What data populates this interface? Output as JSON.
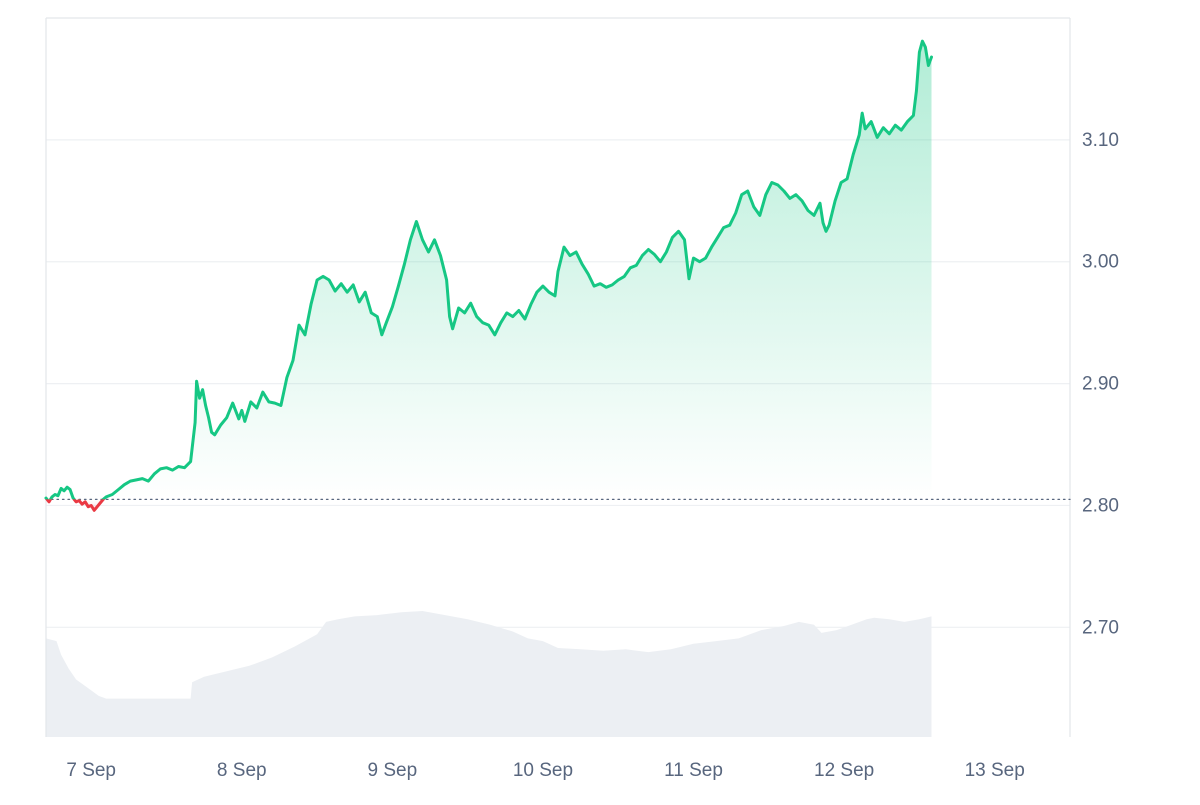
{
  "chart_data": {
    "type": "area",
    "title": "",
    "xlabel": "",
    "ylabel": "",
    "ylim": [
      2.61,
      3.2
    ],
    "xlim": [
      6.7,
      13.5
    ],
    "baseline": 2.805,
    "yticks": [
      2.7,
      2.8,
      2.9,
      3.0,
      3.1
    ],
    "ytick_labels": [
      "2.70",
      "2.80",
      "2.90",
      "3.00",
      "3.10"
    ],
    "xticks": [
      7,
      8,
      9,
      10,
      11,
      12,
      13
    ],
    "xtick_labels": [
      "7 Sep",
      "8 Sep",
      "9 Sep",
      "10 Sep",
      "11 Sep",
      "12 Sep",
      "13 Sep"
    ],
    "grid": true,
    "colors": {
      "up": "#16c784",
      "down": "#ea3943",
      "up_fill_top": "#16c784",
      "down_fill": "#ea3943",
      "volume": "#eceff3",
      "grid": "#eef0f3",
      "axis_text": "#58667e",
      "baseline": "#58667e"
    },
    "series": [
      {
        "values": [
          [
            6.7,
            2.806
          ],
          [
            6.72,
            2.803
          ],
          [
            6.74,
            2.807
          ],
          [
            6.76,
            2.809
          ],
          [
            6.78,
            2.808
          ],
          [
            6.8,
            2.814
          ],
          [
            6.82,
            2.812
          ],
          [
            6.84,
            2.815
          ],
          [
            6.86,
            2.813
          ],
          [
            6.88,
            2.806
          ],
          [
            6.9,
            2.803
          ],
          [
            6.92,
            2.804
          ],
          [
            6.94,
            2.801
          ],
          [
            6.96,
            2.803
          ],
          [
            6.98,
            2.799
          ],
          [
            7.0,
            2.8
          ],
          [
            7.02,
            2.796
          ],
          [
            7.04,
            2.799
          ],
          [
            7.06,
            2.802
          ],
          [
            7.08,
            2.805
          ],
          [
            7.1,
            2.807
          ],
          [
            7.14,
            2.809
          ],
          [
            7.18,
            2.813
          ],
          [
            7.22,
            2.817
          ],
          [
            7.26,
            2.82
          ],
          [
            7.3,
            2.821
          ],
          [
            7.34,
            2.822
          ],
          [
            7.38,
            2.82
          ],
          [
            7.42,
            2.826
          ],
          [
            7.46,
            2.83
          ],
          [
            7.5,
            2.831
          ],
          [
            7.54,
            2.829
          ],
          [
            7.58,
            2.832
          ],
          [
            7.62,
            2.831
          ],
          [
            7.66,
            2.836
          ],
          [
            7.69,
            2.868
          ],
          [
            7.7,
            2.902
          ],
          [
            7.72,
            2.888
          ],
          [
            7.74,
            2.895
          ],
          [
            7.76,
            2.882
          ],
          [
            7.78,
            2.872
          ],
          [
            7.8,
            2.86
          ],
          [
            7.82,
            2.858
          ],
          [
            7.86,
            2.866
          ],
          [
            7.9,
            2.872
          ],
          [
            7.94,
            2.884
          ],
          [
            7.98,
            2.871
          ],
          [
            8.0,
            2.878
          ],
          [
            8.02,
            2.869
          ],
          [
            8.06,
            2.885
          ],
          [
            8.1,
            2.88
          ],
          [
            8.14,
            2.893
          ],
          [
            8.18,
            2.885
          ],
          [
            8.22,
            2.884
          ],
          [
            8.26,
            2.882
          ],
          [
            8.3,
            2.905
          ],
          [
            8.34,
            2.919
          ],
          [
            8.38,
            2.948
          ],
          [
            8.42,
            2.94
          ],
          [
            8.46,
            2.965
          ],
          [
            8.5,
            2.985
          ],
          [
            8.54,
            2.988
          ],
          [
            8.58,
            2.985
          ],
          [
            8.62,
            2.976
          ],
          [
            8.66,
            2.982
          ],
          [
            8.7,
            2.975
          ],
          [
            8.74,
            2.981
          ],
          [
            8.78,
            2.967
          ],
          [
            8.82,
            2.975
          ],
          [
            8.86,
            2.958
          ],
          [
            8.9,
            2.955
          ],
          [
            8.93,
            2.94
          ],
          [
            8.96,
            2.95
          ],
          [
            9.0,
            2.963
          ],
          [
            9.04,
            2.98
          ],
          [
            9.08,
            2.998
          ],
          [
            9.12,
            3.018
          ],
          [
            9.16,
            3.033
          ],
          [
            9.2,
            3.018
          ],
          [
            9.24,
            3.008
          ],
          [
            9.28,
            3.018
          ],
          [
            9.32,
            3.005
          ],
          [
            9.36,
            2.985
          ],
          [
            9.38,
            2.955
          ],
          [
            9.4,
            2.945
          ],
          [
            9.44,
            2.962
          ],
          [
            9.48,
            2.958
          ],
          [
            9.52,
            2.966
          ],
          [
            9.56,
            2.955
          ],
          [
            9.6,
            2.95
          ],
          [
            9.64,
            2.948
          ],
          [
            9.68,
            2.94
          ],
          [
            9.72,
            2.95
          ],
          [
            9.76,
            2.958
          ],
          [
            9.8,
            2.955
          ],
          [
            9.84,
            2.96
          ],
          [
            9.88,
            2.953
          ],
          [
            9.92,
            2.965
          ],
          [
            9.96,
            2.975
          ],
          [
            10.0,
            2.98
          ],
          [
            10.04,
            2.975
          ],
          [
            10.08,
            2.972
          ],
          [
            10.1,
            2.992
          ],
          [
            10.14,
            3.012
          ],
          [
            10.18,
            3.005
          ],
          [
            10.22,
            3.008
          ],
          [
            10.26,
            2.998
          ],
          [
            10.3,
            2.99
          ],
          [
            10.34,
            2.98
          ],
          [
            10.38,
            2.982
          ],
          [
            10.42,
            2.979
          ],
          [
            10.46,
            2.981
          ],
          [
            10.5,
            2.985
          ],
          [
            10.54,
            2.988
          ],
          [
            10.58,
            2.995
          ],
          [
            10.62,
            2.997
          ],
          [
            10.66,
            3.005
          ],
          [
            10.7,
            3.01
          ],
          [
            10.74,
            3.006
          ],
          [
            10.78,
            3.0
          ],
          [
            10.82,
            3.008
          ],
          [
            10.86,
            3.02
          ],
          [
            10.9,
            3.025
          ],
          [
            10.94,
            3.018
          ],
          [
            10.97,
            2.986
          ],
          [
            11.0,
            3.003
          ],
          [
            11.04,
            3.0
          ],
          [
            11.08,
            3.003
          ],
          [
            11.12,
            3.012
          ],
          [
            11.16,
            3.02
          ],
          [
            11.2,
            3.028
          ],
          [
            11.24,
            3.03
          ],
          [
            11.28,
            3.04
          ],
          [
            11.32,
            3.055
          ],
          [
            11.36,
            3.058
          ],
          [
            11.4,
            3.045
          ],
          [
            11.44,
            3.038
          ],
          [
            11.48,
            3.055
          ],
          [
            11.52,
            3.065
          ],
          [
            11.56,
            3.063
          ],
          [
            11.6,
            3.058
          ],
          [
            11.64,
            3.052
          ],
          [
            11.68,
            3.055
          ],
          [
            11.72,
            3.05
          ],
          [
            11.76,
            3.042
          ],
          [
            11.8,
            3.038
          ],
          [
            11.84,
            3.048
          ],
          [
            11.86,
            3.032
          ],
          [
            11.88,
            3.025
          ],
          [
            11.9,
            3.03
          ],
          [
            11.94,
            3.05
          ],
          [
            11.98,
            3.065
          ],
          [
            12.02,
            3.068
          ],
          [
            12.06,
            3.088
          ],
          [
            12.1,
            3.104
          ],
          [
            12.12,
            3.122
          ],
          [
            12.14,
            3.109
          ],
          [
            12.18,
            3.115
          ],
          [
            12.22,
            3.102
          ],
          [
            12.26,
            3.11
          ],
          [
            12.3,
            3.105
          ],
          [
            12.34,
            3.112
          ],
          [
            12.38,
            3.108
          ],
          [
            12.42,
            3.115
          ],
          [
            12.46,
            3.12
          ],
          [
            12.48,
            3.14
          ],
          [
            12.5,
            3.172
          ],
          [
            12.52,
            3.181
          ],
          [
            12.54,
            3.176
          ],
          [
            12.56,
            3.161
          ],
          [
            12.58,
            3.168
          ]
        ]
      }
    ],
    "volume": {
      "ylim": [
        0,
        100
      ],
      "values": [
        [
          6.7,
          72
        ],
        [
          6.77,
          70
        ],
        [
          6.8,
          60
        ],
        [
          6.85,
          50
        ],
        [
          6.9,
          42
        ],
        [
          6.95,
          38
        ],
        [
          7.0,
          34
        ],
        [
          7.05,
          30
        ],
        [
          7.1,
          28
        ],
        [
          7.25,
          28
        ],
        [
          7.42,
          28
        ],
        [
          7.66,
          28
        ],
        [
          7.67,
          40
        ],
        [
          7.75,
          44
        ],
        [
          7.9,
          48
        ],
        [
          8.05,
          52
        ],
        [
          8.2,
          58
        ],
        [
          8.35,
          66
        ],
        [
          8.5,
          75
        ],
        [
          8.56,
          84
        ],
        [
          8.64,
          86
        ],
        [
          8.75,
          88
        ],
        [
          8.9,
          89
        ],
        [
          9.06,
          91
        ],
        [
          9.2,
          92
        ],
        [
          9.35,
          89
        ],
        [
          9.5,
          86
        ],
        [
          9.65,
          82
        ],
        [
          9.8,
          77
        ],
        [
          9.9,
          72
        ],
        [
          10.0,
          70
        ],
        [
          10.1,
          65
        ],
        [
          10.25,
          64
        ],
        [
          10.4,
          63
        ],
        [
          10.55,
          64
        ],
        [
          10.7,
          62
        ],
        [
          10.85,
          64
        ],
        [
          11.0,
          68
        ],
        [
          11.15,
          70
        ],
        [
          11.3,
          72
        ],
        [
          11.45,
          78
        ],
        [
          11.6,
          81
        ],
        [
          11.7,
          84
        ],
        [
          11.8,
          82
        ],
        [
          11.85,
          76
        ],
        [
          11.95,
          78
        ],
        [
          12.05,
          82
        ],
        [
          12.15,
          86
        ],
        [
          12.2,
          87
        ],
        [
          12.3,
          86
        ],
        [
          12.4,
          84
        ],
        [
          12.5,
          86
        ],
        [
          12.58,
          88
        ]
      ]
    }
  }
}
